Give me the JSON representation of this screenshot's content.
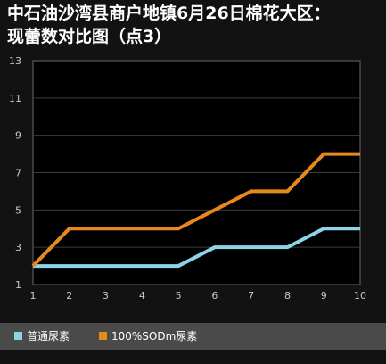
{
  "title_lines": [
    "中石油沙湾县商户地镇6月26日棉花大区：",
    "现蕾数对比图（点3）"
  ],
  "chart_data": {
    "type": "line",
    "title": "中石油沙湾县商户地镇6月26日棉花大区：现蕾数对比图（点3）",
    "xlabel": "",
    "ylabel": "",
    "x": [
      1,
      2,
      3,
      4,
      5,
      6,
      7,
      8,
      9,
      10
    ],
    "x_tick_labels": [
      "1",
      "2",
      "3",
      "4",
      "5",
      "6",
      "7",
      "8",
      "9",
      "10"
    ],
    "y_tick_labels": [
      "1",
      "3",
      "5",
      "7",
      "9",
      "11",
      "13"
    ],
    "xlim": [
      1,
      10
    ],
    "ylim": [
      1,
      13
    ],
    "grid": "horizontal",
    "legend_position": "bottom",
    "series": [
      {
        "name": "普通尿素",
        "color": "#8fd3e8",
        "values": [
          2,
          2,
          2,
          2,
          2,
          3,
          3,
          3,
          4,
          4
        ]
      },
      {
        "name": "100%SODm尿素",
        "color": "#e8891f",
        "values": [
          2,
          4,
          4,
          4,
          4,
          5,
          6,
          6,
          8,
          8
        ]
      }
    ]
  }
}
